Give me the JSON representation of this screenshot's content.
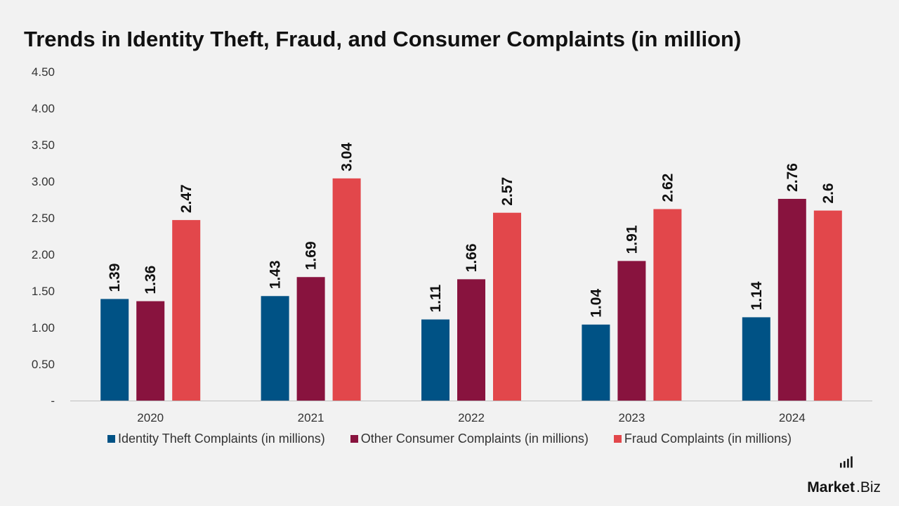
{
  "title": "Trends in Identity Theft, Fraud, and Consumer Complaints (in million)",
  "brand": {
    "name_bold": "Market",
    "name_rest": ".Biz"
  },
  "colors": {
    "identity": "#005285",
    "other": "#88133e",
    "fraud": "#e2474b",
    "axis": "#bfbfbf",
    "text": "#333333",
    "label": "#111111"
  },
  "chart_data": {
    "type": "bar",
    "title": "Trends in Identity Theft, Fraud, and Consumer Complaints (in million)",
    "categories": [
      "2020",
      "2021",
      "2022",
      "2023",
      "2024"
    ],
    "series": [
      {
        "name": "Identity Theft Complaints (in millions)",
        "values": [
          1.39,
          1.43,
          1.11,
          1.04,
          1.14
        ],
        "labels": [
          "1.39",
          "1.43",
          "1.11",
          "1.04",
          "1.14"
        ],
        "color": "#005285"
      },
      {
        "name": "Other Consumer Complaints (in millions)",
        "values": [
          1.36,
          1.69,
          1.66,
          1.91,
          2.76
        ],
        "labels": [
          "1.36",
          "1.69",
          "1.66",
          "1.91",
          "2.76"
        ],
        "color": "#88133e"
      },
      {
        "name": "Fraud Complaints (in millions)",
        "values": [
          2.47,
          3.04,
          2.57,
          2.62,
          2.6
        ],
        "labels": [
          "2.47",
          "3.04",
          "2.57",
          "2.62",
          "2.6"
        ],
        "color": "#e2474b"
      }
    ],
    "yticks": [
      "-",
      "0.50",
      "1.00",
      "1.50",
      "2.00",
      "2.50",
      "3.00",
      "3.50",
      "4.00",
      "4.50"
    ],
    "ylim": [
      0,
      4.5
    ],
    "grid": false,
    "legend": "bottom"
  }
}
